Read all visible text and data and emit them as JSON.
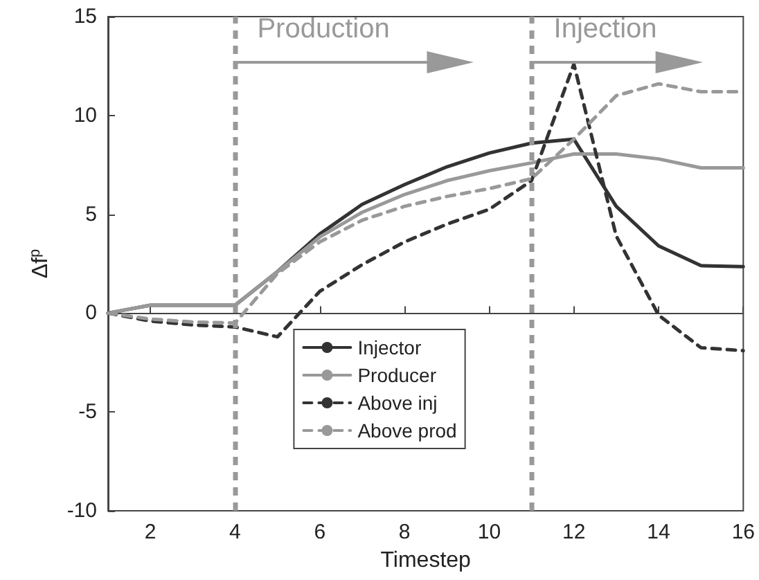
{
  "chart_data": {
    "type": "line",
    "xlabel": "Timestep",
    "ylabel": "Δf$^{p}$",
    "x": [
      1,
      2,
      3,
      4,
      5,
      6,
      7,
      8,
      9,
      10,
      11,
      12,
      13,
      14,
      15,
      16
    ],
    "series": [
      {
        "name": "Injector",
        "color": "#333333",
        "line_style": "solid",
        "values": [
          0,
          0.4,
          0.4,
          0.4,
          2.1,
          4.0,
          5.5,
          6.5,
          7.4,
          8.1,
          8.6,
          8.8,
          5.4,
          3.4,
          2.4,
          2.35
        ]
      },
      {
        "name": "Producer",
        "color": "#999999",
        "line_style": "solid",
        "values": [
          0,
          0.4,
          0.4,
          0.4,
          2.1,
          3.85,
          5.1,
          6.0,
          6.7,
          7.2,
          7.6,
          8.05,
          8.05,
          7.8,
          7.35,
          7.35
        ]
      },
      {
        "name": "Above inj",
        "color": "#333333",
        "line_style": "dashed",
        "values": [
          0,
          -0.4,
          -0.6,
          -0.7,
          -1.2,
          1.1,
          2.45,
          3.6,
          4.5,
          5.25,
          6.7,
          12.6,
          3.9,
          -0.1,
          -1.75,
          -1.9
        ]
      },
      {
        "name": "Above prod",
        "color": "#999999",
        "line_style": "dashed",
        "values": [
          0,
          -0.3,
          -0.45,
          -0.5,
          2.0,
          3.6,
          4.7,
          5.4,
          5.9,
          6.3,
          6.8,
          8.8,
          11.0,
          11.6,
          11.2,
          11.2
        ]
      }
    ],
    "xlim": [
      1,
      16
    ],
    "xticks": [
      2,
      4,
      6,
      8,
      10,
      12,
      14,
      16
    ],
    "ylim": [
      -10,
      15
    ],
    "yticks": [
      -10,
      -5,
      0,
      5,
      10,
      15
    ],
    "ref_lines": [
      {
        "axis": "x",
        "value": 4,
        "color": "#999999",
        "line_style": "dashed"
      },
      {
        "axis": "x",
        "value": 11,
        "color": "#999999",
        "line_style": "dashed"
      }
    ],
    "annotations": [
      "Production",
      "Injection"
    ],
    "grid": false,
    "legend": "bottom",
    "marker": "none"
  }
}
